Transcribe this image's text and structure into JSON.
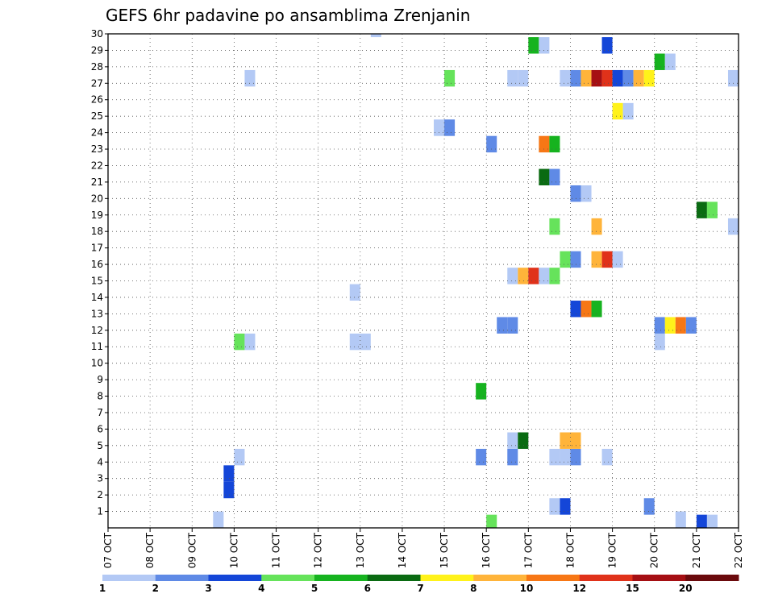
{
  "chart_data": {
    "type": "heatmap",
    "title": "GEFS 6hr padavine po ansamblima Zrenjanin",
    "x_tick_labels": [
      "07 OCT",
      "08 OCT",
      "09 OCT",
      "10 OCT",
      "11 OCT",
      "12 OCT",
      "13 OCT",
      "14 OCT",
      "15 OCT",
      "16 OCT",
      "17 OCT",
      "18 OCT",
      "19 OCT",
      "20 OCT",
      "21 OCT",
      "22 OCT"
    ],
    "y_tick_labels": [
      "1",
      "2",
      "3",
      "4",
      "5",
      "6",
      "7",
      "8",
      "9",
      "10",
      "11",
      "12",
      "13",
      "14",
      "15",
      "16",
      "17",
      "18",
      "19",
      "20",
      "21",
      "22",
      "23",
      "24",
      "25",
      "26",
      "27",
      "28",
      "29",
      "30"
    ],
    "x_range_days": [
      0,
      15
    ],
    "y_range": [
      0,
      30
    ],
    "step_hours": 6,
    "grid": true,
    "colorbar": {
      "colors": [
        "#b3c9f5",
        "#5f8ae6",
        "#1446d8",
        "#66e35b",
        "#16b31f",
        "#0a6b12",
        "#fff21a",
        "#ffb43a",
        "#f77715",
        "#e0321a",
        "#a50f13",
        "#6b0a0d"
      ],
      "labels": [
        "1",
        "2",
        "3",
        "4",
        "5",
        "6",
        "7",
        "8",
        "10",
        "12",
        "15",
        "20"
      ]
    },
    "cells": [
      {
        "day": 2.5,
        "member": 0,
        "level": 1
      },
      {
        "day": 2.75,
        "member": 1.8,
        "level": 3
      },
      {
        "day": 2.75,
        "member": 2.8,
        "level": 3
      },
      {
        "day": 3.0,
        "member": 3.8,
        "level": 1
      },
      {
        "day": 3.0,
        "member": 10.8,
        "level": 4
      },
      {
        "day": 3.25,
        "member": 10.8,
        "level": 1
      },
      {
        "day": 3.25,
        "member": 26.8,
        "level": 1
      },
      {
        "day": 5.75,
        "member": 10.8,
        "level": 1
      },
      {
        "day": 6.0,
        "member": 10.8,
        "level": 1
      },
      {
        "day": 5.75,
        "member": 13.8,
        "level": 1
      },
      {
        "day": 6.25,
        "member": 29.8,
        "level": 1
      },
      {
        "day": 7.75,
        "member": 23.8,
        "level": 1
      },
      {
        "day": 8.0,
        "member": 23.8,
        "level": 2
      },
      {
        "day": 8.0,
        "member": 26.8,
        "level": 4
      },
      {
        "day": 8.75,
        "member": 3.8,
        "level": 2
      },
      {
        "day": 8.75,
        "member": 7.8,
        "level": 5
      },
      {
        "day": 9.0,
        "member": -0.2,
        "level": 4
      },
      {
        "day": 9.0,
        "member": 22.8,
        "level": 2
      },
      {
        "day": 9.25,
        "member": 11.8,
        "level": 2
      },
      {
        "day": 9.5,
        "member": 11.8,
        "level": 2
      },
      {
        "day": 9.5,
        "member": 3.8,
        "level": 2
      },
      {
        "day": 9.5,
        "member": 4.8,
        "level": 1
      },
      {
        "day": 9.5,
        "member": 14.8,
        "level": 1
      },
      {
        "day": 9.75,
        "member": 14.8,
        "level": 8
      },
      {
        "day": 10.0,
        "member": 14.8,
        "level": 10
      },
      {
        "day": 10.25,
        "member": 14.8,
        "level": 1
      },
      {
        "day": 10.5,
        "member": 14.8,
        "level": 4
      },
      {
        "day": 9.5,
        "member": 26.8,
        "level": 1
      },
      {
        "day": 9.75,
        "member": 26.8,
        "level": 1
      },
      {
        "day": 9.75,
        "member": 4.8,
        "level": 6
      },
      {
        "day": 10.0,
        "member": 28.8,
        "level": 5
      },
      {
        "day": 10.25,
        "member": 28.8,
        "level": 1
      },
      {
        "day": 10.25,
        "member": 20.8,
        "level": 6
      },
      {
        "day": 10.5,
        "member": 20.8,
        "level": 2
      },
      {
        "day": 10.25,
        "member": 22.8,
        "level": 9
      },
      {
        "day": 10.5,
        "member": 22.8,
        "level": 5
      },
      {
        "day": 10.5,
        "member": 0.8,
        "level": 1
      },
      {
        "day": 10.75,
        "member": 0.8,
        "level": 3
      },
      {
        "day": 10.5,
        "member": 3.8,
        "level": 1
      },
      {
        "day": 10.75,
        "member": 3.8,
        "level": 1
      },
      {
        "day": 11.0,
        "member": 3.8,
        "level": 2
      },
      {
        "day": 10.5,
        "member": 17.8,
        "level": 4
      },
      {
        "day": 10.75,
        "member": 4.8,
        "level": 8
      },
      {
        "day": 11.0,
        "member": 4.8,
        "level": 8
      },
      {
        "day": 10.75,
        "member": 15.8,
        "level": 4
      },
      {
        "day": 11.0,
        "member": 15.8,
        "level": 2
      },
      {
        "day": 10.75,
        "member": 26.8,
        "level": 1
      },
      {
        "day": 11.0,
        "member": 26.8,
        "level": 2
      },
      {
        "day": 11.25,
        "member": 26.8,
        "level": 8
      },
      {
        "day": 11.5,
        "member": 26.8,
        "level": 11
      },
      {
        "day": 11.75,
        "member": 26.8,
        "level": 10
      },
      {
        "day": 12.0,
        "member": 26.8,
        "level": 3
      },
      {
        "day": 12.25,
        "member": 26.8,
        "level": 2
      },
      {
        "day": 12.5,
        "member": 26.8,
        "level": 8
      },
      {
        "day": 12.75,
        "member": 26.8,
        "level": 7
      },
      {
        "day": 11.0,
        "member": 12.8,
        "level": 3
      },
      {
        "day": 11.25,
        "member": 12.8,
        "level": 9
      },
      {
        "day": 11.5,
        "member": 12.8,
        "level": 5
      },
      {
        "day": 11.0,
        "member": 19.8,
        "level": 2
      },
      {
        "day": 11.25,
        "member": 19.8,
        "level": 1
      },
      {
        "day": 11.5,
        "member": 15.8,
        "level": 8
      },
      {
        "day": 11.75,
        "member": 15.8,
        "level": 10
      },
      {
        "day": 12.0,
        "member": 15.8,
        "level": 1
      },
      {
        "day": 11.5,
        "member": 17.8,
        "level": 8
      },
      {
        "day": 11.75,
        "member": 28.8,
        "level": 3
      },
      {
        "day": 11.75,
        "member": 3.8,
        "level": 1
      },
      {
        "day": 12.0,
        "member": 24.8,
        "level": 7
      },
      {
        "day": 12.25,
        "member": 24.8,
        "level": 1
      },
      {
        "day": 12.75,
        "member": 0.8,
        "level": 2
      },
      {
        "day": 13.0,
        "member": 27.8,
        "level": 5
      },
      {
        "day": 13.25,
        "member": 27.8,
        "level": 1
      },
      {
        "day": 13.0,
        "member": 10.8,
        "level": 1
      },
      {
        "day": 13.0,
        "member": 11.8,
        "level": 2
      },
      {
        "day": 13.25,
        "member": 11.8,
        "level": 7
      },
      {
        "day": 13.5,
        "member": 11.8,
        "level": 9
      },
      {
        "day": 13.75,
        "member": 11.8,
        "level": 2
      },
      {
        "day": 13.5,
        "member": 0,
        "level": 1
      },
      {
        "day": 14.0,
        "member": -0.2,
        "level": 3
      },
      {
        "day": 14.25,
        "member": -0.2,
        "level": 1
      },
      {
        "day": 14.0,
        "member": 18.8,
        "level": 6
      },
      {
        "day": 14.25,
        "member": 18.8,
        "level": 4
      },
      {
        "day": 14.75,
        "member": 17.8,
        "level": 1
      },
      {
        "day": 14.75,
        "member": 26.8,
        "level": 1
      }
    ]
  }
}
